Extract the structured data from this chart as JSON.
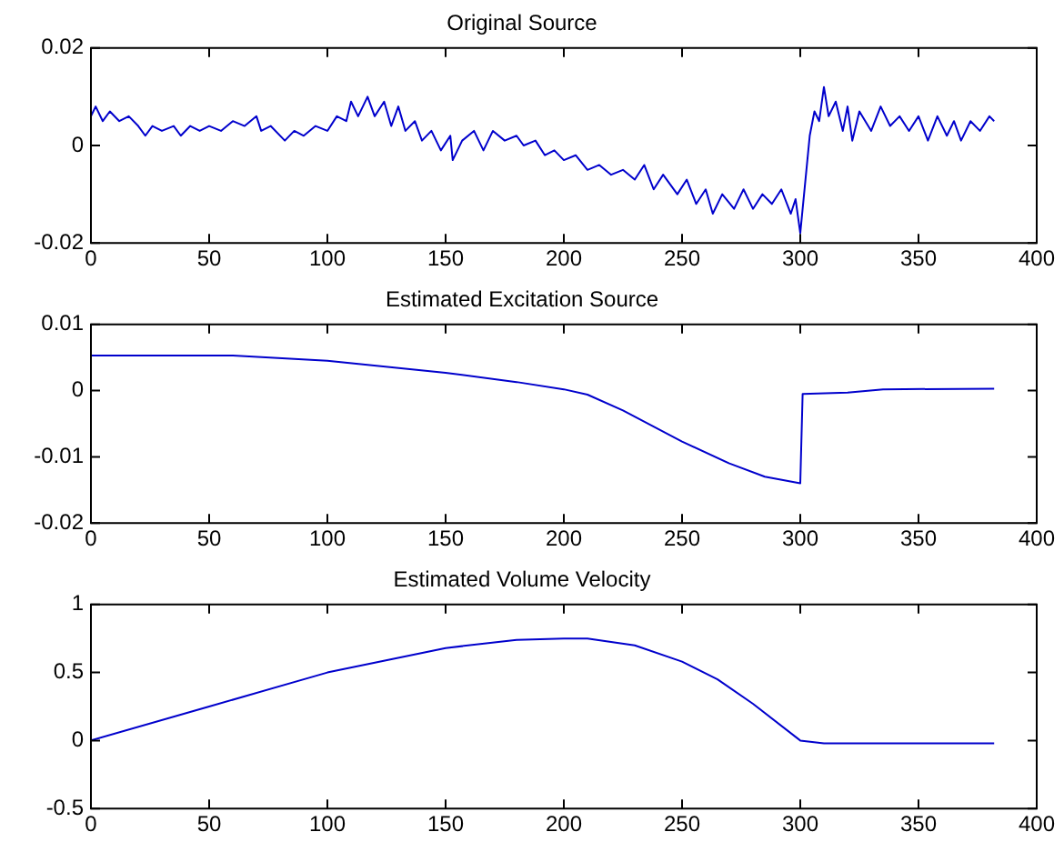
{
  "chart_data": [
    {
      "type": "line",
      "title": "Original Source",
      "xlim": [
        0,
        400
      ],
      "xticks": [
        0,
        50,
        100,
        150,
        200,
        250,
        300,
        350,
        400
      ],
      "ylim": [
        -0.02,
        0.02
      ],
      "yticks": [
        -0.02,
        0,
        0.02
      ],
      "grid": false,
      "legend": false,
      "marker": "none",
      "series": [
        {
          "color": "#0000cc",
          "x": [
            0,
            2,
            5,
            8,
            12,
            16,
            20,
            23,
            26,
            30,
            35,
            38,
            42,
            46,
            50,
            55,
            60,
            65,
            70,
            72,
            76,
            82,
            86,
            90,
            95,
            100,
            104,
            108,
            110,
            113,
            117,
            120,
            124,
            127,
            130,
            133,
            137,
            140,
            144,
            148,
            152,
            153,
            157,
            162,
            166,
            170,
            175,
            180,
            183,
            188,
            192,
            196,
            200,
            205,
            210,
            215,
            220,
            225,
            230,
            234,
            238,
            242,
            248,
            252,
            256,
            260,
            263,
            267,
            272,
            276,
            280,
            284,
            288,
            292,
            296,
            298,
            300,
            302,
            304,
            306,
            308,
            310,
            312,
            315,
            318,
            320,
            322,
            325,
            330,
            334,
            338,
            342,
            346,
            350,
            354,
            358,
            362,
            365,
            368,
            372,
            376,
            380,
            382
          ],
          "values": [
            0.006,
            0.008,
            0.005,
            0.007,
            0.005,
            0.006,
            0.004,
            0.002,
            0.004,
            0.003,
            0.004,
            0.002,
            0.004,
            0.003,
            0.004,
            0.003,
            0.005,
            0.004,
            0.006,
            0.003,
            0.004,
            0.001,
            0.003,
            0.002,
            0.004,
            0.003,
            0.006,
            0.005,
            0.009,
            0.006,
            0.01,
            0.006,
            0.009,
            0.004,
            0.008,
            0.003,
            0.005,
            0.001,
            0.003,
            -0.001,
            0.002,
            -0.003,
            0.001,
            0.003,
            -0.001,
            0.003,
            0.001,
            0.002,
            0,
            0.001,
            -0.002,
            -0.001,
            -0.003,
            -0.002,
            -0.005,
            -0.004,
            -0.006,
            -0.005,
            -0.007,
            -0.004,
            -0.009,
            -0.006,
            -0.01,
            -0.007,
            -0.012,
            -0.009,
            -0.014,
            -0.01,
            -0.013,
            -0.009,
            -0.013,
            -0.01,
            -0.012,
            -0.009,
            -0.014,
            -0.011,
            -0.018,
            -0.008,
            0.002,
            0.007,
            0.005,
            0.012,
            0.006,
            0.009,
            0.003,
            0.008,
            0.001,
            0.007,
            0.003,
            0.008,
            0.004,
            0.006,
            0.003,
            0.006,
            0.001,
            0.006,
            0.002,
            0.005,
            0.001,
            0.005,
            0.003,
            0.006,
            0.005
          ]
        }
      ]
    },
    {
      "type": "line",
      "title": "Estimated Excitation Source",
      "xlim": [
        0,
        400
      ],
      "xticks": [
        0,
        50,
        100,
        150,
        200,
        250,
        300,
        350,
        400
      ],
      "ylim": [
        -0.02,
        0.01
      ],
      "yticks": [
        -0.02,
        -0.01,
        0,
        0.01
      ],
      "grid": false,
      "legend": false,
      "marker": "none",
      "series": [
        {
          "color": "#0000cc",
          "x": [
            0,
            60,
            100,
            150,
            180,
            200,
            210,
            225,
            250,
            270,
            285,
            300,
            301,
            320,
            335,
            382
          ],
          "values": [
            0.0053,
            0.0053,
            0.0045,
            0.0027,
            0.0013,
            0.0002,
            -0.0006,
            -0.003,
            -0.0077,
            -0.011,
            -0.013,
            -0.014,
            -0.0005,
            -0.0003,
            0.0002,
            0.0003
          ]
        }
      ]
    },
    {
      "type": "line",
      "title": "Estimated Volume Velocity",
      "xlim": [
        0,
        400
      ],
      "xticks": [
        0,
        50,
        100,
        150,
        200,
        250,
        300,
        350,
        400
      ],
      "ylim": [
        -0.5,
        1
      ],
      "yticks": [
        -0.5,
        0,
        0.5,
        1
      ],
      "grid": false,
      "legend": false,
      "marker": "none",
      "series": [
        {
          "color": "#0000cc",
          "x": [
            0,
            50,
            100,
            150,
            180,
            200,
            210,
            230,
            250,
            265,
            280,
            300,
            310,
            382
          ],
          "values": [
            0,
            0.25,
            0.5,
            0.68,
            0.74,
            0.75,
            0.75,
            0.7,
            0.58,
            0.45,
            0.27,
            0,
            -0.02,
            -0.02
          ]
        }
      ]
    }
  ]
}
